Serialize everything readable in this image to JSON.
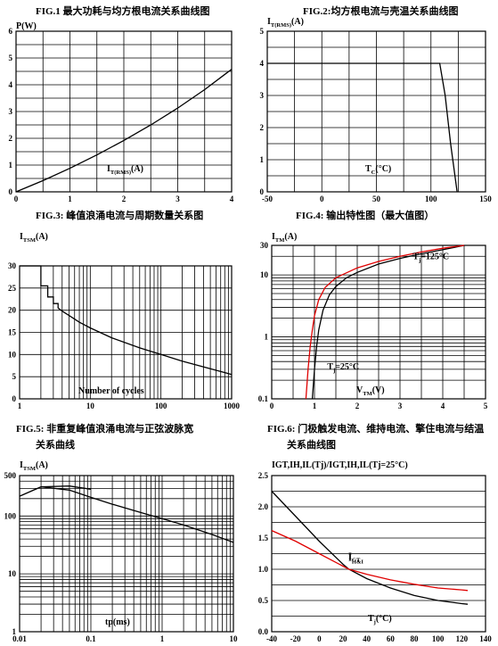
{
  "chart_data": [
    {
      "id": "fig1",
      "type": "line",
      "title": "FIG.1  最大功耗与均方根电流关系曲线图",
      "ylabel": "P(W)",
      "xlabel": "I",
      "xlabel_sub": "T(RMS)",
      "xlabel_tail": "(A)",
      "x_ticks": [
        "0",
        "1",
        "2",
        "3",
        "4"
      ],
      "y_ticks": [
        "0",
        "1",
        "2",
        "3",
        "4",
        "5",
        "6"
      ],
      "xlim": [
        0,
        4
      ],
      "ylim": [
        0,
        6
      ],
      "series": [
        {
          "color": "#000000",
          "x": [
            0,
            0.5,
            1,
            1.5,
            2,
            2.5,
            3,
            3.5,
            4
          ],
          "y": [
            0,
            0.42,
            0.88,
            1.38,
            1.92,
            2.5,
            3.13,
            3.82,
            4.58
          ]
        }
      ]
    },
    {
      "id": "fig2",
      "type": "line",
      "title": "FIG.2:均方根电流与壳温关系曲线图",
      "ylabel": "I",
      "ylabel_sub": "T(RMS)",
      "ylabel_tail": "(A)",
      "xlabel": "T",
      "xlabel_sub": "C",
      "xlabel_tail": "(°C)",
      "x_ticks": [
        "-50",
        "0",
        "50",
        "100",
        "150"
      ],
      "y_ticks": [
        "0",
        "1",
        "2",
        "3",
        "4",
        "5"
      ],
      "xlim": [
        -50,
        150
      ],
      "ylim": [
        0,
        5
      ],
      "series": [
        {
          "color": "#000000",
          "x": [
            -50,
            108,
            113,
            118,
            124
          ],
          "y": [
            4,
            4,
            3,
            1.5,
            0
          ]
        }
      ]
    },
    {
      "id": "fig3",
      "type": "line",
      "title": "FIG.3:  峰值浪涌电流与周期数量关系图",
      "ylabel": "I",
      "ylabel_sub": "TSM",
      "ylabel_tail": "(A)",
      "xlabel": "Number of cycles",
      "x_ticks": [
        "1",
        "10",
        "100",
        "1000"
      ],
      "y_ticks": [
        "0",
        "5",
        "10",
        "15",
        "20",
        "25",
        "30"
      ],
      "xlim": [
        1,
        1000
      ],
      "x_scale": "log",
      "ylim": [
        0,
        30
      ],
      "series": [
        {
          "color": "#000000",
          "x": [
            1,
            2,
            2,
            2.5,
            2.5,
            3,
            3,
            3.5,
            3.5,
            4,
            5,
            7,
            10,
            20,
            50,
            100,
            200,
            500,
            1000
          ],
          "y": [
            30,
            30,
            25.5,
            25.5,
            23,
            23,
            21.5,
            21.5,
            20.5,
            19.8,
            18.8,
            17.3,
            16,
            13.8,
            11.5,
            10,
            8.5,
            6.8,
            5.5
          ]
        }
      ]
    },
    {
      "id": "fig4",
      "type": "line",
      "title": "FIG.4:  输出特性图（最大值图）",
      "ylabel": "I",
      "ylabel_sub": "TM",
      "ylabel_tail": "(A)",
      "xlabel": "V",
      "xlabel_sub": "TM",
      "xlabel_tail": "(V)",
      "x_ticks": [
        "0",
        "1",
        "2",
        "3",
        "4",
        "5"
      ],
      "y_ticks": [
        "0.1",
        "1",
        "10",
        "30"
      ],
      "xlim": [
        0,
        5
      ],
      "ylim": [
        0.1,
        30
      ],
      "y_scale": "log",
      "annotations": [
        {
          "text": "T",
          "sub": "j",
          "tail": "=125°C",
          "x": 3.3,
          "y": 18
        },
        {
          "text": "T",
          "sub": "j",
          "tail": "=25°C",
          "x": 1.3,
          "y": 0.3
        }
      ],
      "series": [
        {
          "name": "T_j=25°C",
          "color": "#000000",
          "x": [
            0.95,
            1,
            1.05,
            1.1,
            1.2,
            1.35,
            1.5,
            1.75,
            2,
            2.5,
            3,
            3.5,
            4,
            4.5
          ],
          "y": [
            0.1,
            0.3,
            0.7,
            1.3,
            2.7,
            4.8,
            6.5,
            9,
            11,
            15,
            18.5,
            22,
            25.5,
            30
          ]
        },
        {
          "name": "T_j=125°C",
          "color": "#e00000",
          "x": [
            0.8,
            0.85,
            0.9,
            0.95,
            1,
            1.1,
            1.25,
            1.5,
            2,
            2.5,
            3,
            3.5,
            4,
            4.5
          ],
          "y": [
            0.1,
            0.3,
            0.7,
            1.3,
            2.2,
            4,
            6.3,
            9,
            13,
            16.5,
            20,
            23.5,
            27,
            30
          ]
        }
      ]
    },
    {
      "id": "fig5",
      "type": "line",
      "title": "FIG.5:  非重复峰值浪涌电流与正弦波脉宽关系曲线",
      "ylabel": "I",
      "ylabel_sub": "TSM",
      "ylabel_tail": "(A)",
      "xlabel": "tp(ms)",
      "x_ticks": [
        "0.01",
        "0.1",
        "1",
        "10"
      ],
      "y_ticks": [
        "1",
        "10",
        "100",
        "500"
      ],
      "xlim": [
        0.01,
        10
      ],
      "ylim": [
        1,
        500
      ],
      "x_scale": "log",
      "y_scale": "log",
      "series": [
        {
          "color": "#000000",
          "x": [
            0.01,
            0.02,
            0.05,
            0.1,
            0.2,
            0.5,
            1,
            2,
            5,
            10
          ],
          "y": [
            220,
            320,
            280,
            210,
            160,
            115,
            90,
            70,
            48,
            35
          ]
        },
        {
          "color": "#000000",
          "x": [
            0.02,
            0.05,
            0.1
          ],
          "y": [
            320,
            330,
            290
          ]
        }
      ]
    },
    {
      "id": "fig6",
      "type": "line",
      "title": "FIG.6:  门极触发电流、维持电流、擎住电流与结温关系曲线图",
      "ylabel": "I",
      "ylabel_sub": "GT",
      "ylabel_tail": ",I",
      "ylabel_full": "I_GT,I_H,I_L(T_j)/I_GT,I_H,I_L(T_j=25°C)",
      "xlabel": "T",
      "xlabel_sub": "j",
      "xlabel_tail": "(°C)",
      "x_ticks": [
        "-40",
        "-20",
        "0",
        "20",
        "40",
        "60",
        "80",
        "100",
        "120",
        "140"
      ],
      "y_ticks": [
        "0.0",
        "0.5",
        "1.0",
        "1.5",
        "2.0",
        "2.5"
      ],
      "xlim": [
        -40,
        140
      ],
      "ylim": [
        0,
        2.5
      ],
      "series": [
        {
          "name": "I_GT",
          "color": "#000000",
          "x": [
            -40,
            -20,
            0,
            20,
            25,
            40,
            60,
            80,
            100,
            120,
            125
          ],
          "y": [
            2.25,
            1.85,
            1.45,
            1.08,
            1,
            0.85,
            0.7,
            0.58,
            0.5,
            0.45,
            0.44
          ]
        },
        {
          "name": "I_H&I_L",
          "color": "#e00000",
          "x": [
            -40,
            -20,
            0,
            20,
            25,
            40,
            60,
            80,
            100,
            120,
            125
          ],
          "y": [
            1.62,
            1.45,
            1.25,
            1.05,
            1,
            0.92,
            0.83,
            0.76,
            0.7,
            0.67,
            0.66
          ]
        }
      ]
    }
  ]
}
